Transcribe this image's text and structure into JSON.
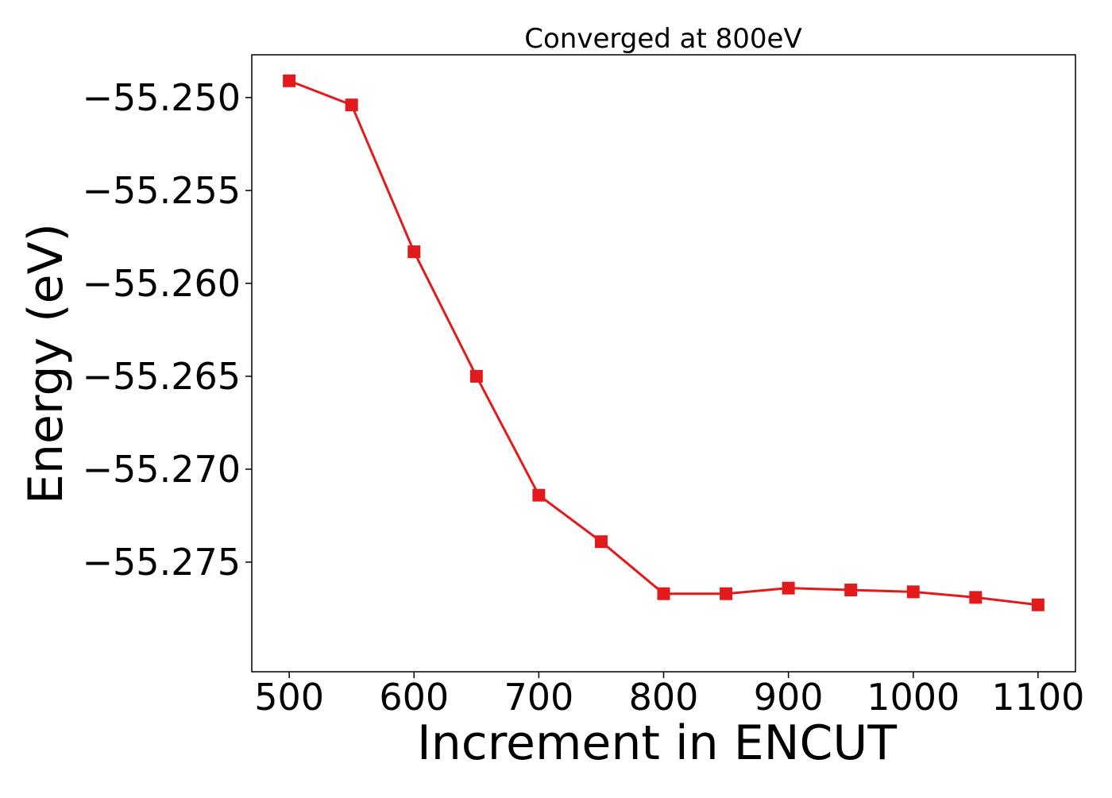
{
  "chart_data": {
    "type": "line",
    "title": "Converged at 800eV",
    "xlabel": "Increment in ENCUT",
    "ylabel": "Energy (eV)",
    "xlim": [
      470,
      1130
    ],
    "ylim": [
      -55.2809,
      -55.2477
    ],
    "xticks": [
      500,
      600,
      700,
      800,
      900,
      1000,
      1100
    ],
    "xtick_labels": [
      "500",
      "600",
      "700",
      "800",
      "900",
      "1000",
      "1100"
    ],
    "yticks": [
      -55.25,
      -55.255,
      -55.26,
      -55.265,
      -55.27,
      -55.275
    ],
    "ytick_labels": [
      "−55.250",
      "−55.255",
      "−55.260",
      "−55.265",
      "−55.270",
      "−55.275"
    ],
    "grid": false,
    "series": [
      {
        "color": "#e31a1c",
        "marker": "square",
        "x": [
          500,
          550,
          600,
          650,
          700,
          750,
          800,
          850,
          900,
          950,
          1000,
          1050,
          1100
        ],
        "y": [
          -55.2491,
          -55.2504,
          -55.2583,
          -55.265,
          -55.2714,
          -55.2739,
          -55.2767,
          -55.2767,
          -55.2764,
          -55.2765,
          -55.2766,
          -55.2769,
          -55.2773
        ]
      }
    ]
  }
}
